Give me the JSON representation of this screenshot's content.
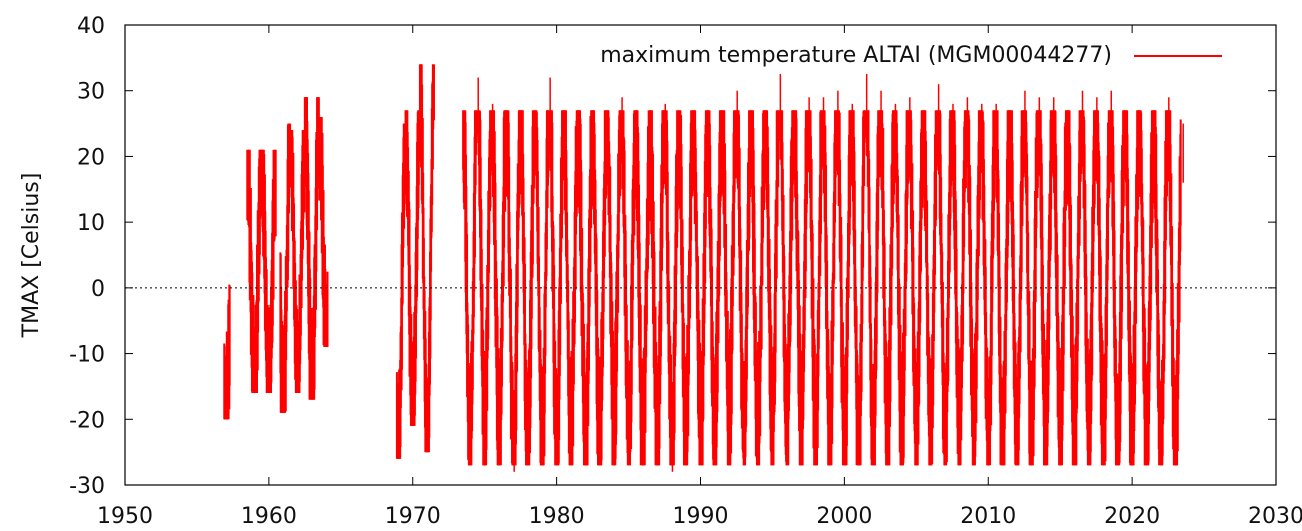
{
  "chart_data": {
    "type": "line",
    "title": "",
    "xlabel": "",
    "ylabel": "TMAX [Celsius]",
    "xlim": [
      1950,
      2030
    ],
    "ylim": [
      -30,
      40
    ],
    "xticks": [
      1950,
      1960,
      1970,
      1980,
      1990,
      2000,
      2010,
      2020,
      2030
    ],
    "yticks": [
      -30,
      -20,
      -10,
      0,
      10,
      20,
      30,
      40
    ],
    "grid": false,
    "zero_line": true,
    "legend_position": "top-right",
    "series": [
      {
        "name": "maximum temperature ALTAI (MGM00044277)",
        "color": "#ff0000",
        "segments": [
          {
            "x_start": 1956.9,
            "x_end": 1957.3,
            "ymin": -20,
            "ymax": 2
          },
          {
            "x_start": 1958.5,
            "x_end": 1960.5,
            "ymin": -16,
            "ymax": 21
          },
          {
            "x_start": 1960.8,
            "x_end": 1961.5,
            "ymin": -19,
            "ymax": 25
          },
          {
            "x_start": 1961.5,
            "x_end": 1962.5,
            "ymin": -16,
            "ymax": 24
          },
          {
            "x_start": 1962.5,
            "x_end": 1963.5,
            "ymin": -17,
            "ymax": 29
          },
          {
            "x_start": 1963.5,
            "x_end": 1964.1,
            "ymin": -9,
            "ymax": 26
          },
          {
            "x_start": 1968.9,
            "x_end": 1969.5,
            "ymin": -26,
            "ymax": 25
          },
          {
            "x_start": 1969.5,
            "x_end": 1970.5,
            "ymin": -21,
            "ymax": 27
          },
          {
            "x_start": 1970.5,
            "x_end": 1971.5,
            "ymin": -25,
            "ymax": 34
          },
          {
            "x_start": 1973.5,
            "x_end": 2023.4,
            "ymin": -27,
            "ymax": 27
          }
        ],
        "annual_min": [
          {
            "year": 1974,
            "value": -22
          },
          {
            "year": 1975,
            "value": -21
          },
          {
            "year": 1976,
            "value": -24
          },
          {
            "year": 1977,
            "value": -28
          },
          {
            "year": 1978,
            "value": -24
          },
          {
            "year": 1979,
            "value": -25
          },
          {
            "year": 1980,
            "value": -26
          },
          {
            "year": 1981,
            "value": -22
          },
          {
            "year": 1982,
            "value": -27
          },
          {
            "year": 1983,
            "value": -22
          },
          {
            "year": 1984,
            "value": -20
          },
          {
            "year": 1985,
            "value": -26
          },
          {
            "year": 1986,
            "value": -22
          },
          {
            "year": 1987,
            "value": -24
          },
          {
            "year": 1988,
            "value": -28
          },
          {
            "year": 1989,
            "value": -20
          },
          {
            "year": 1990,
            "value": -25
          },
          {
            "year": 1991,
            "value": -21
          },
          {
            "year": 1992,
            "value": -20
          },
          {
            "year": 1993,
            "value": -24
          },
          {
            "year": 1994,
            "value": -21
          },
          {
            "year": 1995,
            "value": -21
          },
          {
            "year": 1996,
            "value": -20
          },
          {
            "year": 1997,
            "value": -22
          },
          {
            "year": 1998,
            "value": -25
          },
          {
            "year": 1999,
            "value": -23
          },
          {
            "year": 2000,
            "value": -26
          },
          {
            "year": 2001,
            "value": -26
          },
          {
            "year": 2002,
            "value": -24
          },
          {
            "year": 2003,
            "value": -23
          },
          {
            "year": 2004,
            "value": -22
          },
          {
            "year": 2005,
            "value": -24
          },
          {
            "year": 2006,
            "value": -22
          },
          {
            "year": 2007,
            "value": -23
          },
          {
            "year": 2008,
            "value": -21
          },
          {
            "year": 2009,
            "value": -22
          },
          {
            "year": 2010,
            "value": -27
          },
          {
            "year": 2011,
            "value": -26
          },
          {
            "year": 2012,
            "value": -24
          },
          {
            "year": 2013,
            "value": -25
          },
          {
            "year": 2014,
            "value": -21
          },
          {
            "year": 2015,
            "value": -24
          },
          {
            "year": 2016,
            "value": -23
          },
          {
            "year": 2017,
            "value": -22
          },
          {
            "year": 2018,
            "value": -26
          },
          {
            "year": 2019,
            "value": -25
          },
          {
            "year": 2020,
            "value": -23
          },
          {
            "year": 2021,
            "value": -25
          },
          {
            "year": 2022,
            "value": -26
          },
          {
            "year": 2023,
            "value": -26
          }
        ],
        "annual_max": [
          {
            "year": 1974,
            "value": 32
          },
          {
            "year": 1975,
            "value": 28
          },
          {
            "year": 1976,
            "value": 27
          },
          {
            "year": 1977,
            "value": 27
          },
          {
            "year": 1978,
            "value": 27
          },
          {
            "year": 1979,
            "value": 32
          },
          {
            "year": 1980,
            "value": 27
          },
          {
            "year": 1981,
            "value": 25
          },
          {
            "year": 1982,
            "value": 25
          },
          {
            "year": 1983,
            "value": 26
          },
          {
            "year": 1984,
            "value": 29
          },
          {
            "year": 1985,
            "value": 25
          },
          {
            "year": 1986,
            "value": 23
          },
          {
            "year": 1987,
            "value": 28
          },
          {
            "year": 1988,
            "value": 26
          },
          {
            "year": 1989,
            "value": 27
          },
          {
            "year": 1990,
            "value": 26
          },
          {
            "year": 1991,
            "value": 27
          },
          {
            "year": 1992,
            "value": 30
          },
          {
            "year": 1993,
            "value": 25
          },
          {
            "year": 1994,
            "value": 27
          },
          {
            "year": 1995,
            "value": 33
          },
          {
            "year": 1996,
            "value": 27
          },
          {
            "year": 1997,
            "value": 29
          },
          {
            "year": 1998,
            "value": 29
          },
          {
            "year": 1999,
            "value": 30
          },
          {
            "year": 2000,
            "value": 28
          },
          {
            "year": 2001,
            "value": 36
          },
          {
            "year": 2002,
            "value": 30
          },
          {
            "year": 2003,
            "value": 28
          },
          {
            "year": 2004,
            "value": 29
          },
          {
            "year": 2005,
            "value": 27
          },
          {
            "year": 2006,
            "value": 31
          },
          {
            "year": 2007,
            "value": 28
          },
          {
            "year": 2008,
            "value": 29
          },
          {
            "year": 2009,
            "value": 28
          },
          {
            "year": 2010,
            "value": 28
          },
          {
            "year": 2011,
            "value": 27
          },
          {
            "year": 2012,
            "value": 30
          },
          {
            "year": 2013,
            "value": 29
          },
          {
            "year": 2014,
            "value": 29
          },
          {
            "year": 2015,
            "value": 26
          },
          {
            "year": 2016,
            "value": 30
          },
          {
            "year": 2017,
            "value": 29
          },
          {
            "year": 2018,
            "value": 30
          },
          {
            "year": 2019,
            "value": 27
          },
          {
            "year": 2020,
            "value": 27
          },
          {
            "year": 2021,
            "value": 25
          },
          {
            "year": 2022,
            "value": 29
          },
          {
            "year": 2023,
            "value": 25
          }
        ]
      }
    ]
  }
}
